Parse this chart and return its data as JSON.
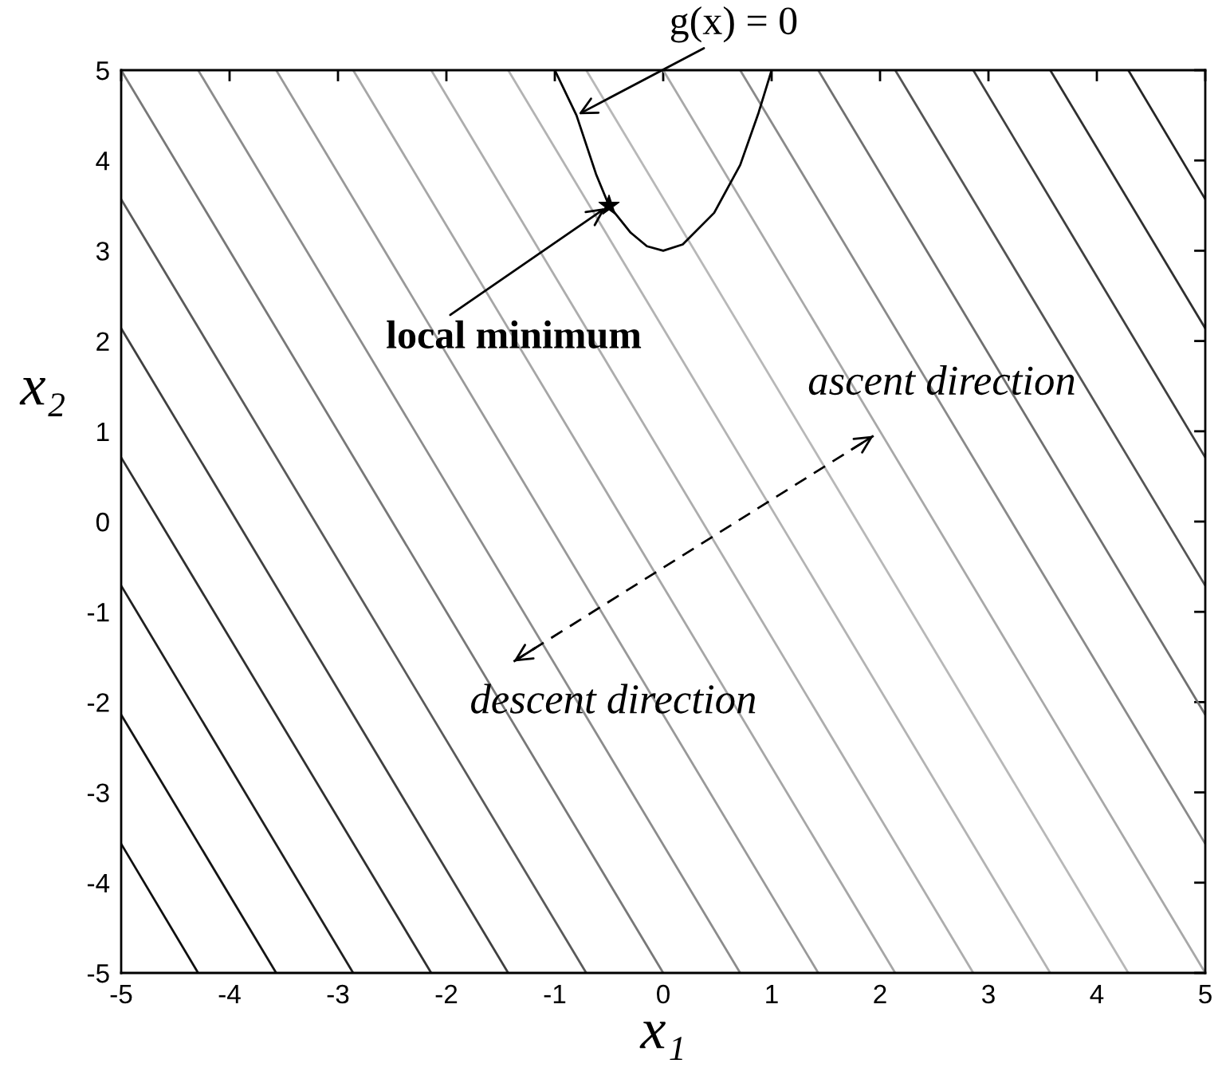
{
  "chart_data": {
    "type": "line",
    "xlabel": "x₁",
    "ylabel": "x₂",
    "xlim": [
      -5,
      5
    ],
    "ylim": [
      -5,
      5
    ],
    "xticks": [
      -5,
      -4,
      -3,
      -2,
      -1,
      0,
      1,
      2,
      3,
      4,
      5
    ],
    "yticks": [
      -5,
      -4,
      -3,
      -2,
      -1,
      0,
      1,
      2,
      3,
      4,
      5
    ],
    "grid": false,
    "series": [
      {
        "color": "#101010",
        "x": [
          -5,
          -4.29
        ],
        "values": [
          -3.57,
          -5
        ]
      },
      {
        "color": "#151515",
        "x": [
          -5,
          -3.57
        ],
        "values": [
          -2.14,
          -5
        ]
      },
      {
        "color": "#202020",
        "x": [
          -5,
          -2.86
        ],
        "values": [
          -0.71,
          -5
        ]
      },
      {
        "color": "#303030",
        "x": [
          -5,
          -2.14
        ],
        "values": [
          0.71,
          -5
        ]
      },
      {
        "color": "#404040",
        "x": [
          -5,
          -1.43
        ],
        "values": [
          2.14,
          -5
        ]
      },
      {
        "color": "#5a5a5a",
        "x": [
          -5,
          -0.71
        ],
        "values": [
          3.57,
          -5
        ]
      },
      {
        "color": "#787878",
        "x": [
          -5,
          0
        ],
        "values": [
          5,
          -5
        ]
      },
      {
        "color": "#8c8c8c",
        "x": [
          -4.29,
          0.71
        ],
        "values": [
          5,
          -5
        ]
      },
      {
        "color": "#999999",
        "x": [
          -3.57,
          1.43
        ],
        "values": [
          5,
          -5
        ]
      },
      {
        "color": "#a6a6a6",
        "x": [
          -2.86,
          2.14
        ],
        "values": [
          5,
          -5
        ]
      },
      {
        "color": "#adadad",
        "x": [
          -2.14,
          2.86
        ],
        "values": [
          5,
          -5
        ]
      },
      {
        "color": "#b3b3b3",
        "x": [
          -1.43,
          3.57
        ],
        "values": [
          5,
          -5
        ]
      },
      {
        "color": "#b8b8b8",
        "x": [
          -0.71,
          4.29
        ],
        "values": [
          5,
          -5
        ]
      },
      {
        "color": "#a8a8a8",
        "x": [
          0,
          5
        ],
        "values": [
          5,
          -5
        ]
      },
      {
        "color": "#8a8a8a",
        "x": [
          0.71,
          5
        ],
        "values": [
          5,
          -3.57
        ]
      },
      {
        "color": "#707070",
        "x": [
          1.43,
          5
        ],
        "values": [
          5,
          -2.14
        ]
      },
      {
        "color": "#555555",
        "x": [
          2.14,
          5
        ],
        "values": [
          5,
          -0.71
        ]
      },
      {
        "color": "#404040",
        "x": [
          2.86,
          5
        ],
        "values": [
          5,
          0.71
        ]
      },
      {
        "color": "#303030",
        "x": [
          3.57,
          5
        ],
        "values": [
          5,
          2.14
        ]
      },
      {
        "color": "#262626",
        "x": [
          4.29,
          5
        ],
        "values": [
          5,
          3.57
        ]
      },
      {
        "color": "#000000",
        "x": [
          -1.0,
          -0.8,
          -0.62,
          -0.5,
          -0.3,
          -0.15,
          0,
          0.18,
          0.47,
          0.71,
          0.88,
          1.0
        ],
        "values": [
          5.0,
          4.5,
          3.85,
          3.5,
          3.2,
          3.05,
          3.0,
          3.07,
          3.42,
          3.95,
          4.53,
          5.0
        ]
      },
      {
        "type": "scatter",
        "color": "#000000",
        "marker": "star",
        "x": [
          -0.5
        ],
        "values": [
          3.5
        ]
      }
    ],
    "annotations": [
      {
        "text": "g(x) = 0",
        "x": -0.8,
        "y": 4.5
      },
      {
        "text": "local minimum",
        "x": -0.5,
        "y": 3.5
      },
      "ascent direction",
      "descent direction"
    ]
  }
}
